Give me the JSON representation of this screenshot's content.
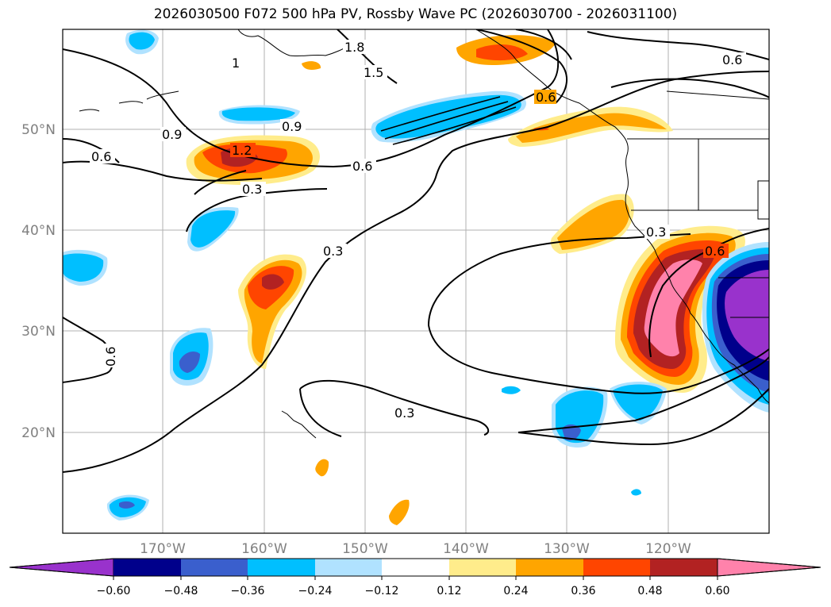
{
  "title": "2026030500 F072 500 hPa PV, Rossby Wave PC (2026030700 - 2026031100)",
  "lat_ticks": [
    "50°N",
    "40°N",
    "30°N",
    "20°N"
  ],
  "lon_ticks": [
    "170°W",
    "160°W",
    "150°W",
    "140°W",
    "130°W",
    "120°W"
  ],
  "contour_labels": [
    "1.8",
    "1",
    "1.5",
    "0.6",
    "0.9",
    "0.9",
    "1.2",
    "0.6",
    "0.6",
    "0.3",
    "0.3",
    "0.3",
    "0.6",
    "0.6",
    "0.3",
    "0.6"
  ],
  "colorbar": {
    "tick_labels": [
      "−0.60",
      "−0.48",
      "−0.36",
      "−0.24",
      "−0.12",
      "0.12",
      "0.24",
      "0.36",
      "0.48",
      "0.60"
    ],
    "colors": [
      "#9932cc",
      "#00008b",
      "#3a5fcd",
      "#00bfff",
      "#b0e2ff",
      "#ffffff",
      "#ffec8b",
      "#ffa500",
      "#ff4500",
      "#b22222",
      "#ff82ab"
    ]
  }
}
